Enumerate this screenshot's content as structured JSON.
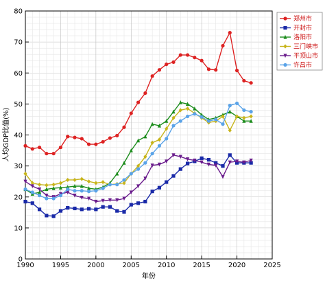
{
  "chart_data": {
    "type": "line",
    "title": "",
    "xlabel": "年份",
    "ylabel": "人均GDP比值(%)",
    "xlim": [
      1990,
      2025
    ],
    "ylim": [
      0,
      80
    ],
    "xticks": [
      1990,
      1995,
      2000,
      2005,
      2010,
      2015,
      2020,
      2025
    ],
    "yticks": [
      0,
      10,
      20,
      30,
      40,
      50,
      60,
      70,
      80
    ],
    "grid": true,
    "legend_position": "top-right",
    "x": [
      1990,
      1991,
      1992,
      1993,
      1994,
      1995,
      1996,
      1997,
      1998,
      1999,
      2000,
      2001,
      2002,
      2003,
      2004,
      2005,
      2006,
      2007,
      2008,
      2009,
      2010,
      2011,
      2012,
      2013,
      2014,
      2015,
      2016,
      2017,
      2018,
      2019,
      2020,
      2021,
      2022
    ],
    "series": [
      {
        "name": "郑州市",
        "color": "#dd2222",
        "marker": "circle",
        "values": [
          36.5,
          35.5,
          36,
          34,
          34,
          36,
          39.5,
          39.2,
          38.8,
          37,
          37,
          37.8,
          39,
          39.8,
          42.5,
          47,
          50.5,
          53.5,
          59,
          61,
          62.8,
          63.5,
          65.8,
          65.8,
          65,
          64,
          61.2,
          61,
          68.8,
          73,
          60.8,
          57.5,
          56.8
        ]
      },
      {
        "name": "开封市",
        "color": "#1a2aa8",
        "marker": "square",
        "values": [
          18.5,
          18,
          16,
          14,
          13.8,
          15.5,
          16.5,
          16.3,
          16,
          16.2,
          16,
          16.8,
          16.8,
          15.5,
          15.2,
          17.5,
          18,
          18.5,
          21.8,
          23,
          24.8,
          26.8,
          29,
          30.8,
          31.5,
          32.5,
          32,
          31,
          30,
          33.5,
          31,
          31,
          31
        ]
      },
      {
        "name": "洛阳市",
        "color": "#1c8c1c",
        "marker": "triangle",
        "values": [
          22.5,
          21,
          21.5,
          22.5,
          22.8,
          23,
          23.2,
          23.5,
          23.5,
          22.8,
          22.5,
          23.2,
          24.5,
          27.5,
          31,
          35,
          38.2,
          39.5,
          43.5,
          43,
          44.5,
          47.5,
          50.5,
          50,
          48.5,
          46.5,
          45,
          45.5,
          46.5,
          47.5,
          46,
          44.5,
          44.5
        ]
      },
      {
        "name": "三门峡市",
        "color": "#c7b41a",
        "marker": "diamond",
        "values": [
          27.5,
          24.5,
          24,
          23.8,
          24,
          24.5,
          25.5,
          25.5,
          25.8,
          25,
          24.5,
          24.8,
          24,
          24.2,
          24.5,
          27.5,
          30,
          33,
          37.5,
          38.5,
          42,
          45.5,
          48,
          48.5,
          47,
          45.5,
          44,
          44.5,
          46,
          41.5,
          46,
          45.5,
          46
        ]
      },
      {
        "name": "平顶山市",
        "color": "#6a1c8c",
        "marker": "triangle-down",
        "values": [
          25,
          23.5,
          22.5,
          20.5,
          20,
          21,
          21.5,
          20.5,
          19.8,
          19.5,
          18.5,
          18.8,
          19,
          19,
          19.5,
          21.5,
          23.5,
          26,
          30.2,
          30.5,
          31.5,
          33.5,
          33,
          32.2,
          31.8,
          31.2,
          30.5,
          30.2,
          26.5,
          31.2,
          31.5,
          31.2,
          31.8
        ]
      },
      {
        "name": "许昌市",
        "color": "#5aa3e8",
        "marker": "circle",
        "values": [
          22.5,
          21.5,
          20.5,
          19.5,
          19.5,
          20.5,
          22.5,
          22,
          22,
          21.8,
          22,
          22.8,
          24,
          24,
          25.5,
          27.5,
          29,
          31,
          34,
          36.5,
          38.8,
          43,
          44.5,
          46,
          46.8,
          45.8,
          44.5,
          45,
          43.5,
          49.5,
          50.2,
          48,
          47.5
        ]
      }
    ]
  }
}
